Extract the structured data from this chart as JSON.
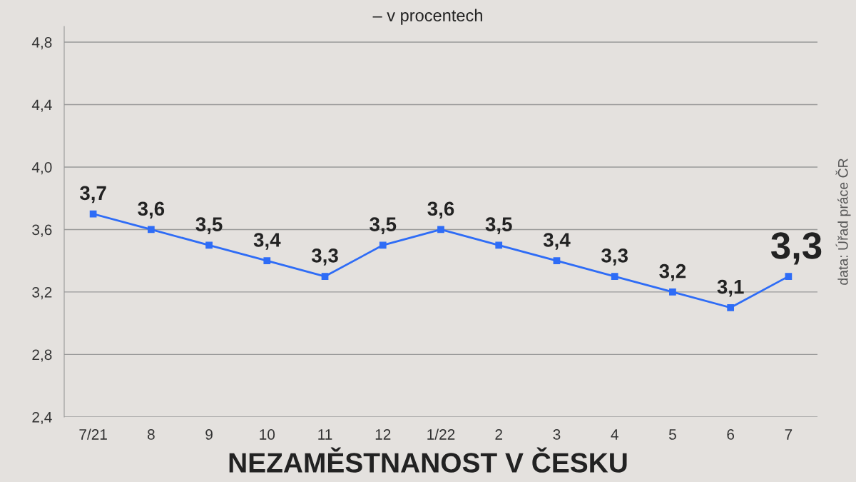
{
  "chart_data": {
    "type": "line",
    "title": "NEZAMĚSTNANOST V ČESKU",
    "subtitle": "– v procentech",
    "annotations": [
      "data: Úřad práce ČR"
    ],
    "categories": [
      "7/21",
      "8",
      "9",
      "10",
      "11",
      "12",
      "1/22",
      "2",
      "3",
      "4",
      "5",
      "6",
      "7"
    ],
    "series": [
      {
        "color": "#2e6cf6",
        "values": [
          3.7,
          3.6,
          3.5,
          3.4,
          3.3,
          3.5,
          3.6,
          3.5,
          3.4,
          3.3,
          3.2,
          3.1,
          3.3
        ],
        "value_labels": [
          "3,7",
          "3,6",
          "3,5",
          "3,4",
          "3,3",
          "3,5",
          "3,6",
          "3,5",
          "3,4",
          "3,3",
          "3,2",
          "3,1",
          "3,3"
        ]
      }
    ],
    "ylim": [
      2.4,
      4.9
    ],
    "yticks": [
      {
        "value": 2.4,
        "label": "2,4"
      },
      {
        "value": 2.8,
        "label": "2,8"
      },
      {
        "value": 3.2,
        "label": "3,2"
      },
      {
        "value": 3.6,
        "label": "3,6"
      },
      {
        "value": 4.0,
        "label": "4,0"
      },
      {
        "value": 4.4,
        "label": "4,4"
      },
      {
        "value": 4.8,
        "label": "4,8"
      }
    ],
    "grid": "y",
    "marker": "square",
    "line_style": "solid"
  }
}
